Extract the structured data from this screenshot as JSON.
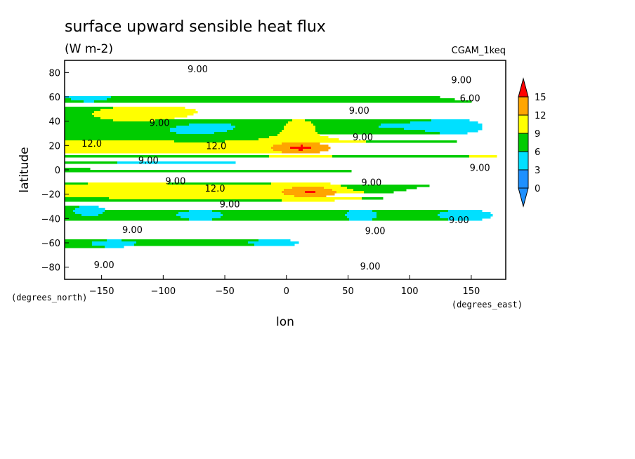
{
  "chart_data": {
    "type": "contour",
    "title": "surface upward sensible heat flux",
    "units": "(W m-2)",
    "run_label": "CGAM_1keq",
    "xlabel": "lon",
    "ylabel": "latitude",
    "x_units": "(degrees_east)",
    "y_units": "(degrees_north)",
    "xlim": [
      -180,
      178
    ],
    "ylim": [
      -90,
      90
    ],
    "x_ticks": [
      -150,
      -100,
      -50,
      0,
      50,
      100,
      150
    ],
    "y_ticks": [
      80,
      60,
      40,
      20,
      0,
      -20,
      -40,
      -60,
      -80
    ],
    "colorbar": {
      "levels": [
        0,
        3,
        6,
        9,
        12,
        15
      ],
      "colors": [
        "#1e90ff",
        "#00e0ff",
        "#00cc00",
        "#ffff00",
        "#ffa500",
        "#ff0000"
      ],
      "extend": "both"
    },
    "contour_labels": [
      {
        "text": "9.00",
        "lon": -72,
        "lat": 83
      },
      {
        "text": "9.00",
        "lon": 142,
        "lat": 74
      },
      {
        "text": "6.00",
        "lon": 149,
        "lat": 59
      },
      {
        "text": "9.00",
        "lon": 59,
        "lat": 49
      },
      {
        "text": "9.00",
        "lon": -103,
        "lat": 39
      },
      {
        "text": "9.00",
        "lon": 62,
        "lat": 27
      },
      {
        "text": "12.0",
        "lon": -158,
        "lat": 22
      },
      {
        "text": "12.0",
        "lon": -57,
        "lat": 20
      },
      {
        "text": "9.00",
        "lon": -112,
        "lat": 8
      },
      {
        "text": "9.00",
        "lon": 157,
        "lat": 2
      },
      {
        "text": "9.00",
        "lon": -90,
        "lat": -9
      },
      {
        "text": "9.00",
        "lon": 69,
        "lat": -10
      },
      {
        "text": "12.0",
        "lon": -58,
        "lat": -15
      },
      {
        "text": "9.00",
        "lon": -46,
        "lat": -28
      },
      {
        "text": "9.00",
        "lon": 140,
        "lat": -41
      },
      {
        "text": "9.00",
        "lon": -125,
        "lat": -49
      },
      {
        "text": "9.00",
        "lon": 72,
        "lat": -50
      },
      {
        "text": "9.00",
        "lon": -148,
        "lat": -78
      },
      {
        "text": "9.00",
        "lon": 68,
        "lat": -79
      }
    ]
  }
}
